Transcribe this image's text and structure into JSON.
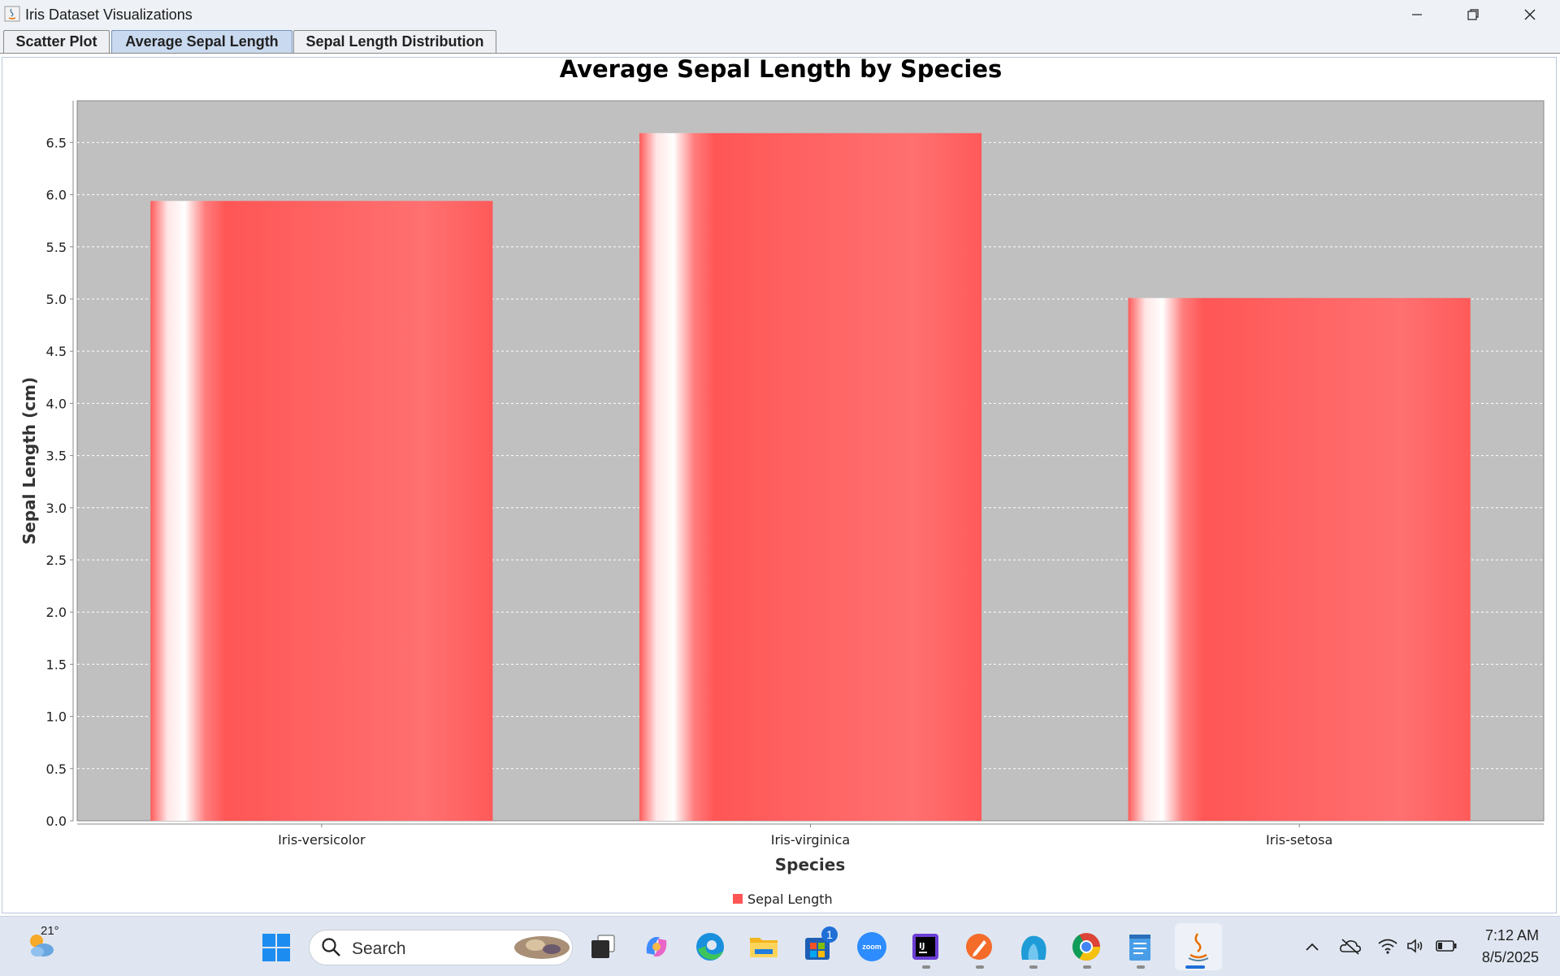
{
  "window": {
    "title": "Iris Dataset Visualizations"
  },
  "tabs": [
    {
      "label": "Scatter Plot",
      "active": false
    },
    {
      "label": "Average Sepal Length",
      "active": true
    },
    {
      "label": "Sepal Length Distribution",
      "active": false
    }
  ],
  "chart_data": {
    "type": "bar",
    "title": "Average Sepal Length by Species",
    "xlabel": "Species",
    "ylabel": "Sepal Length (cm)",
    "categories": [
      "Iris-versicolor",
      "Iris-virginica",
      "Iris-setosa"
    ],
    "series": [
      {
        "name": "Sepal Length",
        "values": [
          5.94,
          6.59,
          5.01
        ],
        "color": "#ff5555"
      }
    ],
    "ylim": [
      0,
      6.9
    ],
    "yticks": [
      "0.0",
      "0.5",
      "1.0",
      "1.5",
      "2.0",
      "2.5",
      "3.0",
      "3.5",
      "4.0",
      "4.5",
      "5.0",
      "5.5",
      "6.0",
      "6.5"
    ],
    "grid": true,
    "plot_background": "#c0c0c0",
    "legend_position": "bottom"
  },
  "taskbar": {
    "weather_temp": "21°",
    "search_placeholder": "Search",
    "store_badge": "1",
    "zoom_label": "zoom",
    "time": "7:12 AM",
    "date": "8/5/2025",
    "apps": [
      "start-icon",
      "search-icon",
      "task-view-icon",
      "copilot-icon",
      "edge-icon",
      "file-explorer-icon",
      "microsoft-store-icon",
      "zoom-icon",
      "intellij-icon",
      "pen-app-icon",
      "cloud-app-icon",
      "chrome-icon",
      "notepad-icon",
      "java-icon"
    ]
  }
}
